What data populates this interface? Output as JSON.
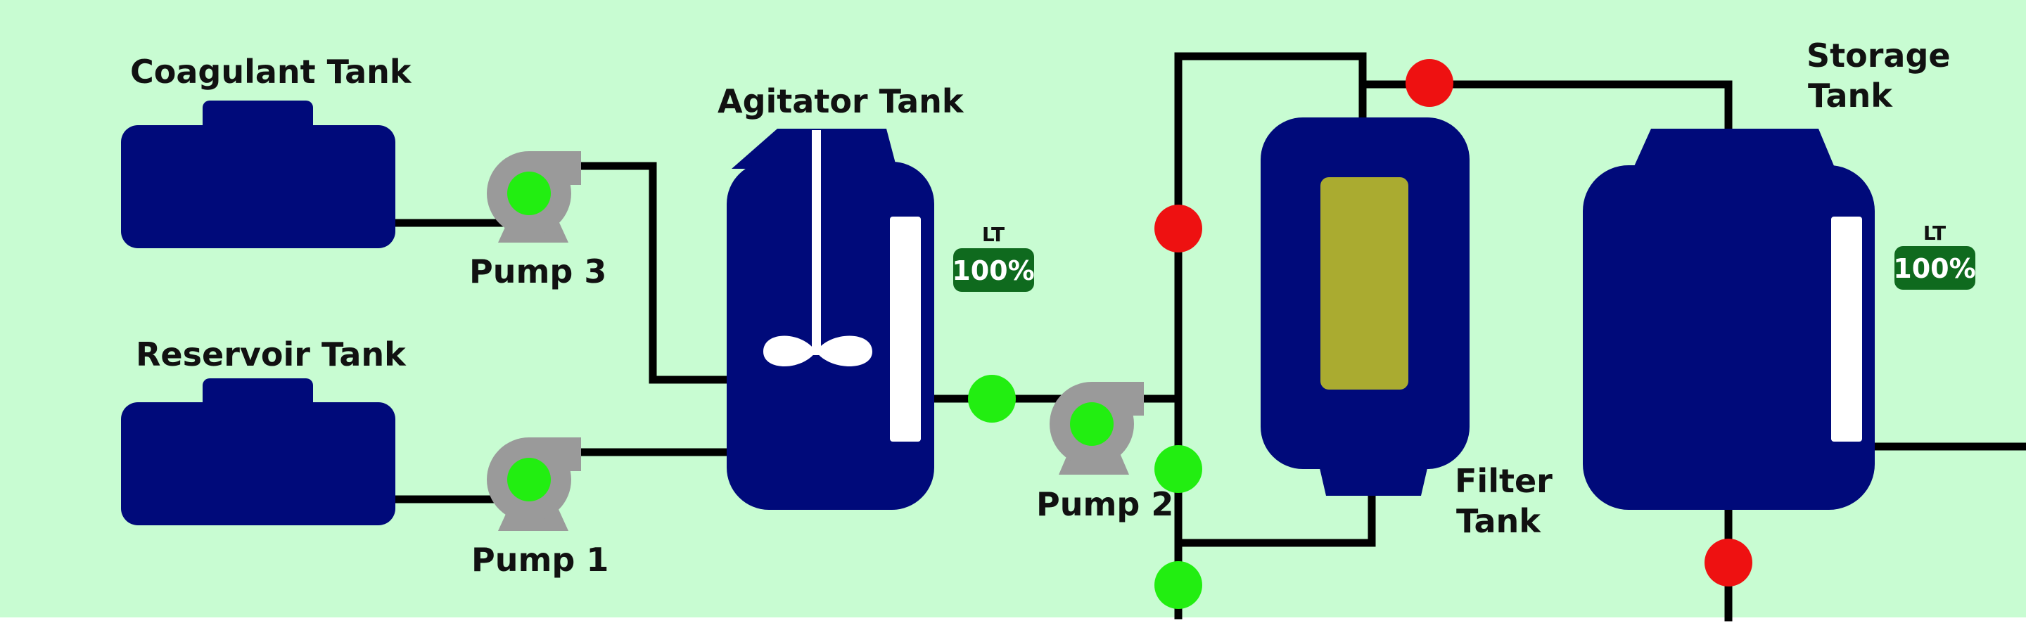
{
  "labels": {
    "coagulant_tank": "Coagulant Tank",
    "reservoir_tank": "Reservoir Tank",
    "agitator_tank": "Agitator Tank",
    "storage_tank_line1": "Storage",
    "storage_tank_line2": "Tank",
    "filter_tank_line1": "Filter",
    "filter_tank_line2": "Tank",
    "pump1": "Pump 1",
    "pump2": "Pump 2",
    "pump3": "Pump 3"
  },
  "level_transmitters": {
    "agitator": {
      "caption": "LT",
      "value": "100%"
    },
    "storage": {
      "caption": "LT",
      "value": "100%"
    }
  },
  "status": {
    "pump1": "on",
    "pump2": "on",
    "pump3": "on",
    "valve_agitator_outlet": "open",
    "valve_bypass_upper": "closed",
    "valve_filter_inlet": "open",
    "valve_drain_bottom": "open",
    "valve_filter_outlet": "closed",
    "valve_storage_outlet": "closed"
  },
  "colors": {
    "background": "#c8fcd2",
    "tank": "#000a7a",
    "pump_body": "#9a9a9a",
    "running": "#22ee11",
    "open": "#22ee11",
    "closed": "#ee1111",
    "filter_media": "#aaab30",
    "lt_badge": "#0f6a1e"
  }
}
